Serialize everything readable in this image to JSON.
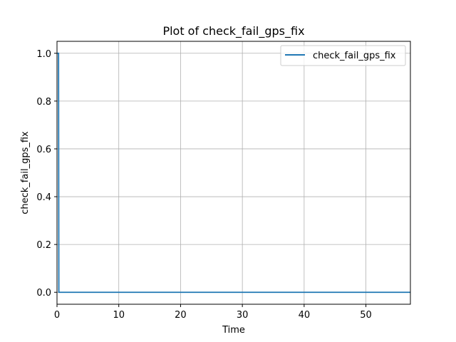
{
  "chart_data": {
    "type": "line",
    "title": "Plot of check_fail_gps_fix",
    "xlabel": "Time",
    "ylabel": "check_fail_gps_fix",
    "xlim": [
      0,
      57.2
    ],
    "ylim": [
      -0.05,
      1.05
    ],
    "xticks": [
      "0",
      "10",
      "20",
      "30",
      "40",
      "50"
    ],
    "yticks": [
      "0.0",
      "0.2",
      "0.4",
      "0.6",
      "0.8",
      "1.0"
    ],
    "grid": true,
    "legend_position": "top-right",
    "series": [
      {
        "name": "check_fail_gps_fix",
        "color": "#1f77b4",
        "x": [
          0.05,
          0.25,
          0.3,
          57.2
        ],
        "y": [
          1,
          1,
          0,
          0
        ]
      }
    ]
  }
}
